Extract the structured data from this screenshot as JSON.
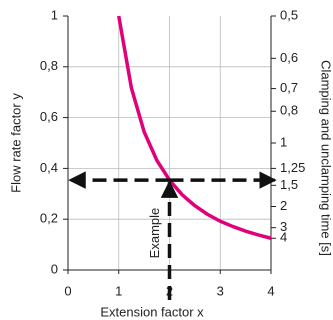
{
  "chart_data": {
    "type": "line",
    "x_label": "Extension factor x",
    "y_label": "Flow rate factor y",
    "y2_label": "Clamping and unclamping time [s]",
    "x": [
      1,
      1.25,
      1.5,
      1.75,
      2,
      2.25,
      2.5,
      2.75,
      3,
      3.25,
      3.5,
      3.75,
      4
    ],
    "series": [
      {
        "name": "Flow rate factor",
        "color": "#e0007a",
        "values": [
          1,
          0.716,
          0.544,
          0.432,
          0.354,
          0.296,
          0.253,
          0.219,
          0.192,
          0.171,
          0.153,
          0.138,
          0.125
        ]
      }
    ],
    "xlim": [
      0,
      4
    ],
    "xticks": [
      0,
      1,
      2,
      3,
      4
    ],
    "ylim": [
      0,
      1
    ],
    "yticks": [
      0,
      {
        "value": 0.2,
        "label": "0,2"
      },
      {
        "value": 0.4,
        "label": "0,4"
      },
      {
        "value": 0.6,
        "label": "0,6"
      },
      {
        "value": 0.8,
        "label": "0,8"
      },
      1
    ],
    "y2scale": "reciprocal",
    "y2ticks": [
      {
        "value": 0.5,
        "label": "0,5"
      },
      {
        "value": 0.6,
        "label": "0,6"
      },
      {
        "value": 0.7,
        "label": "0,7"
      },
      {
        "value": 0.8,
        "label": "0,8"
      },
      1,
      {
        "value": 1.25,
        "label": "1,25"
      },
      {
        "value": 1.5,
        "label": "1,5"
      },
      2,
      3,
      4
    ],
    "grid": true,
    "example": {
      "label": "Example",
      "x_index": 4
    }
  }
}
